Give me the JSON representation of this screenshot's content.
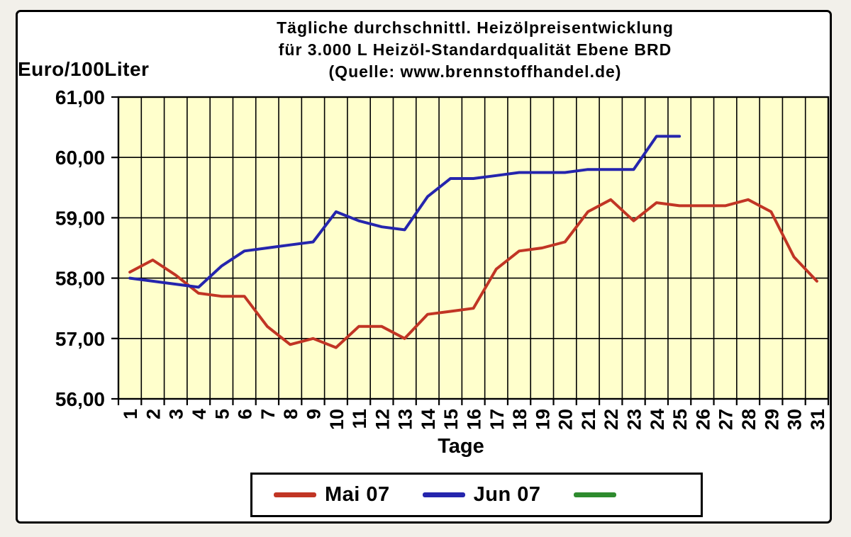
{
  "page": {
    "background": "#f2f0ea",
    "frame_border": "#000000"
  },
  "chart_data": {
    "type": "line",
    "title_lines": [
      "Tägliche durchschnittl. Heizölpreisentwicklung",
      "für 3.000 L Heizöl-Standardqualität Ebene BRD",
      "(Quelle: www.brennstoffhandel.de)"
    ],
    "title": "Tägliche durchschnittl. Heizölpreisentwicklung für 3.000 L Heizöl-Standardqualität Ebene BRD (Quelle: www.brennstoffhandel.de)",
    "xlabel": "Tage",
    "ylabel": "Euro/100Liter",
    "ylim": [
      56,
      61
    ],
    "ytick_interval": 1,
    "ytick_labels": [
      "61,00",
      "60,00",
      "59,00",
      "58,00",
      "57,00",
      "56,00"
    ],
    "categories": [
      "1",
      "2",
      "3",
      "4",
      "5",
      "6",
      "7",
      "8",
      "9",
      "10",
      "11",
      "12",
      "13",
      "14",
      "15",
      "16",
      "17",
      "18",
      "19",
      "20",
      "21",
      "22",
      "23",
      "24",
      "25",
      "26",
      "27",
      "28",
      "29",
      "30",
      "31"
    ],
    "grid": true,
    "grid_color": "#000000",
    "plot_background": "#ffffcc",
    "legend_position": "bottom",
    "series": [
      {
        "name": "Mai 07",
        "color": "#c13524",
        "values": [
          58.1,
          58.3,
          58.05,
          57.75,
          57.7,
          57.7,
          57.2,
          56.9,
          57.0,
          56.85,
          57.2,
          57.2,
          57.0,
          57.4,
          57.45,
          57.5,
          58.15,
          58.45,
          58.5,
          58.6,
          59.1,
          59.3,
          58.95,
          59.25,
          59.2,
          59.2,
          59.2,
          59.3,
          59.1,
          58.35,
          57.95
        ]
      },
      {
        "name": "Jun 07",
        "color": "#2525ad",
        "values": [
          58.0,
          57.95,
          57.9,
          57.85,
          58.2,
          58.45,
          58.5,
          58.55,
          58.6,
          59.1,
          58.95,
          58.85,
          58.8,
          59.35,
          59.65,
          59.65,
          59.7,
          59.75,
          59.75,
          59.75,
          59.8,
          59.8,
          59.8,
          60.35,
          60.35
        ]
      },
      {
        "name": "",
        "color": "#2e8b2e",
        "values": []
      }
    ]
  }
}
